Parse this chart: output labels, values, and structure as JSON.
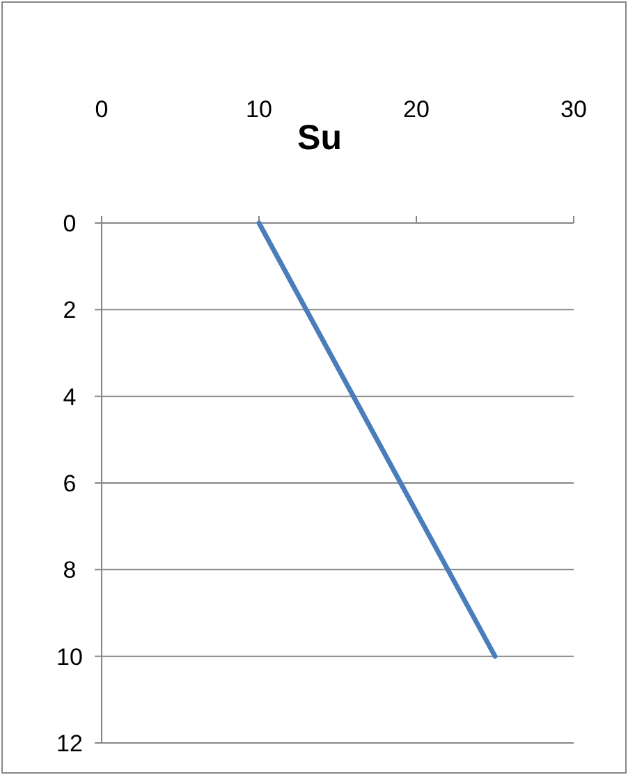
{
  "chart_data": {
    "type": "line",
    "title": "Su",
    "x": [
      10,
      25
    ],
    "series": [
      {
        "color": "#4a7ebb",
        "values": [
          0,
          10
        ]
      }
    ],
    "xlim": [
      0,
      30
    ],
    "xticks": [
      0,
      10,
      20,
      30
    ],
    "ylim": [
      12,
      0
    ],
    "yticks": [
      0,
      2,
      4,
      6,
      8,
      10,
      12
    ],
    "grid": "y",
    "marker": "none",
    "line_style": "solid"
  }
}
